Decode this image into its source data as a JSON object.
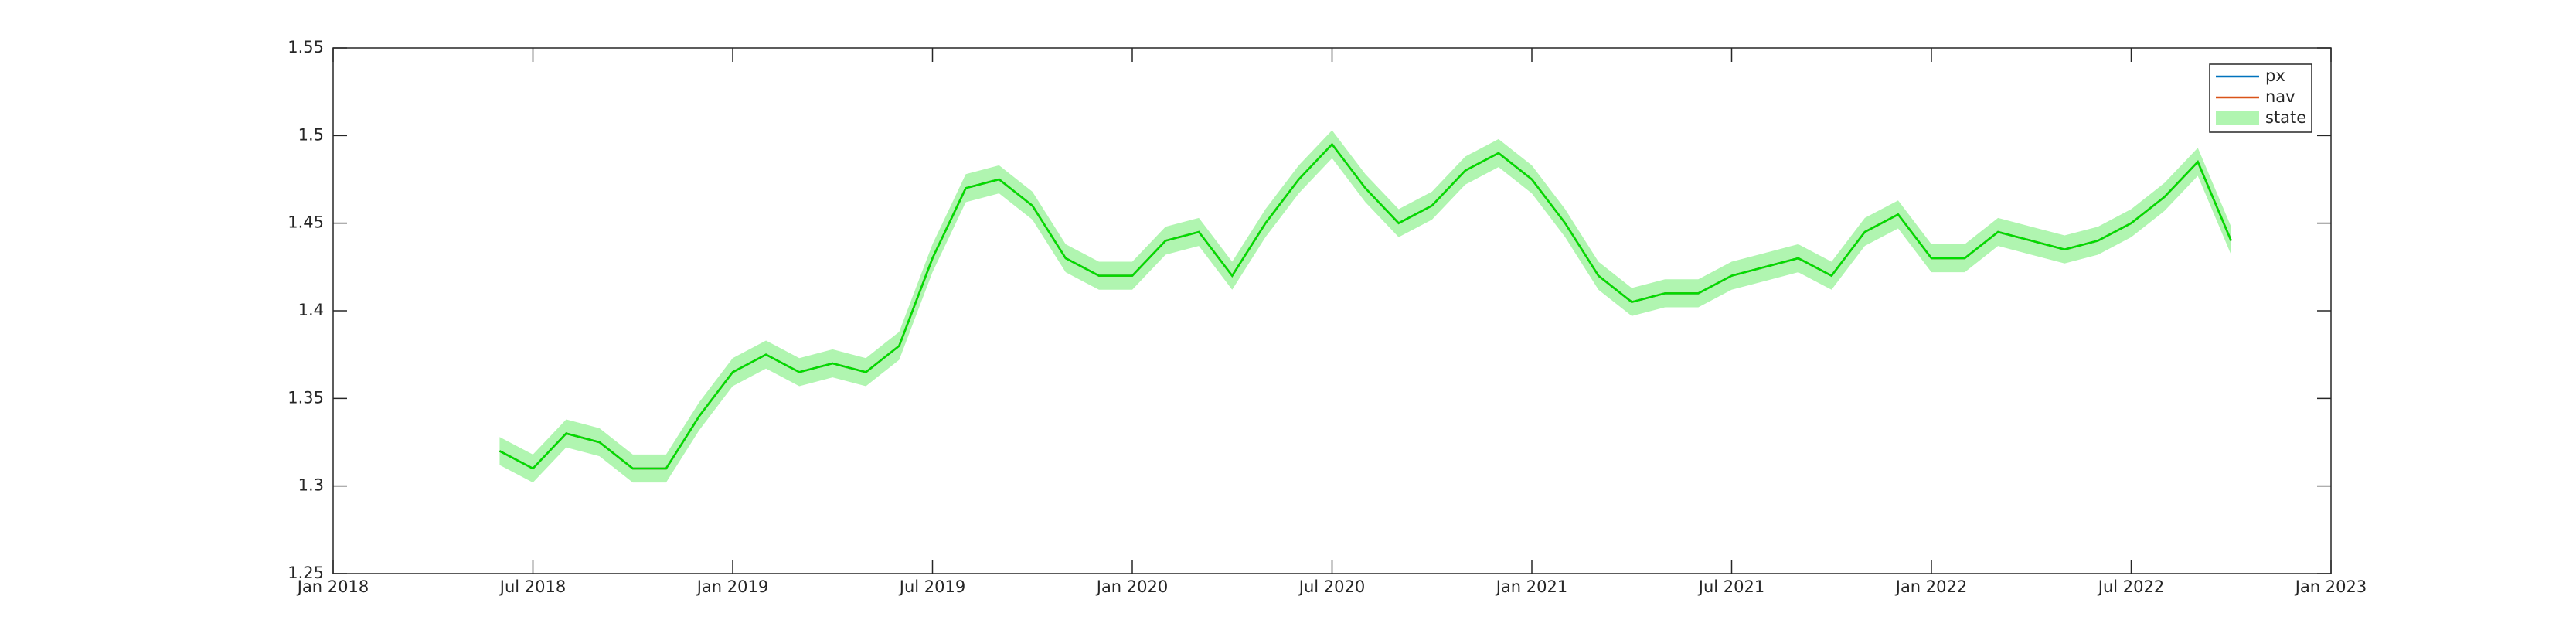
{
  "chart_data": {
    "type": "line",
    "x": [
      "2018-06",
      "2018-07",
      "2018-08",
      "2018-09",
      "2018-10",
      "2018-11",
      "2018-12",
      "2019-01",
      "2019-02",
      "2019-03",
      "2019-04",
      "2019-05",
      "2019-06",
      "2019-07",
      "2019-08",
      "2019-09",
      "2019-10",
      "2019-11",
      "2019-12",
      "2020-01",
      "2020-02",
      "2020-03",
      "2020-04",
      "2020-05",
      "2020-06",
      "2020-07",
      "2020-08",
      "2020-09",
      "2020-10",
      "2020-11",
      "2020-12",
      "2021-01",
      "2021-02",
      "2021-03",
      "2021-04",
      "2021-05",
      "2021-06",
      "2021-07",
      "2021-08",
      "2021-09",
      "2021-10",
      "2021-11",
      "2021-12",
      "2022-01",
      "2022-02",
      "2022-03",
      "2022-04",
      "2022-05",
      "2022-06",
      "2022-07",
      "2022-08",
      "2022-09",
      "2022-10"
    ],
    "series": [
      {
        "name": "px",
        "color": "#0072bd",
        "values": [
          1.32,
          1.31,
          1.33,
          1.325,
          1.31,
          1.31,
          1.34,
          1.365,
          1.375,
          1.365,
          1.37,
          1.365,
          1.38,
          1.43,
          1.47,
          1.475,
          1.46,
          1.43,
          1.42,
          1.42,
          1.44,
          1.445,
          1.42,
          1.45,
          1.475,
          1.495,
          1.47,
          1.45,
          1.46,
          1.48,
          1.49,
          1.475,
          1.45,
          1.42,
          1.405,
          1.41,
          1.41,
          1.42,
          1.425,
          1.43,
          1.42,
          1.445,
          1.455,
          1.43,
          1.43,
          1.445,
          1.44,
          1.435,
          1.44,
          1.45,
          1.465,
          1.485,
          1.44
        ]
      },
      {
        "name": "nav",
        "color": "#d95319",
        "values": [
          1.32,
          1.31,
          1.33,
          1.325,
          1.31,
          1.31,
          1.34,
          1.365,
          1.375,
          1.365,
          1.37,
          1.365,
          1.38,
          1.43,
          1.47,
          1.475,
          1.46,
          1.43,
          1.42,
          1.42,
          1.44,
          1.445,
          1.42,
          1.45,
          1.475,
          1.495,
          1.47,
          1.45,
          1.46,
          1.48,
          1.49,
          1.475,
          1.45,
          1.42,
          1.405,
          1.41,
          1.41,
          1.42,
          1.425,
          1.43,
          1.42,
          1.445,
          1.455,
          1.43,
          1.43,
          1.445,
          1.44,
          1.435,
          1.44,
          1.45,
          1.465,
          1.485,
          1.44
        ]
      },
      {
        "name": "state",
        "color": "#00dd00",
        "band_color": "#b0f5b0",
        "values": [
          1.32,
          1.31,
          1.33,
          1.325,
          1.31,
          1.31,
          1.34,
          1.365,
          1.375,
          1.365,
          1.37,
          1.365,
          1.38,
          1.43,
          1.47,
          1.475,
          1.46,
          1.43,
          1.42,
          1.42,
          1.44,
          1.445,
          1.42,
          1.45,
          1.475,
          1.495,
          1.47,
          1.45,
          1.46,
          1.48,
          1.49,
          1.475,
          1.45,
          1.42,
          1.405,
          1.41,
          1.41,
          1.42,
          1.425,
          1.43,
          1.42,
          1.445,
          1.455,
          1.43,
          1.43,
          1.445,
          1.44,
          1.435,
          1.44,
          1.45,
          1.465,
          1.485,
          1.44
        ],
        "lower": [
          1.312,
          1.302,
          1.322,
          1.317,
          1.302,
          1.302,
          1.332,
          1.357,
          1.367,
          1.357,
          1.362,
          1.357,
          1.372,
          1.422,
          1.462,
          1.467,
          1.452,
          1.422,
          1.412,
          1.412,
          1.432,
          1.437,
          1.412,
          1.442,
          1.467,
          1.487,
          1.462,
          1.442,
          1.452,
          1.472,
          1.482,
          1.467,
          1.442,
          1.412,
          1.397,
          1.402,
          1.402,
          1.412,
          1.417,
          1.422,
          1.412,
          1.437,
          1.447,
          1.422,
          1.422,
          1.437,
          1.432,
          1.427,
          1.432,
          1.442,
          1.457,
          1.477,
          1.432
        ],
        "upper": [
          1.328,
          1.318,
          1.338,
          1.333,
          1.318,
          1.318,
          1.348,
          1.373,
          1.383,
          1.373,
          1.378,
          1.373,
          1.388,
          1.438,
          1.478,
          1.483,
          1.468,
          1.438,
          1.428,
          1.428,
          1.448,
          1.453,
          1.428,
          1.458,
          1.483,
          1.503,
          1.478,
          1.458,
          1.468,
          1.488,
          1.498,
          1.483,
          1.458,
          1.428,
          1.413,
          1.418,
          1.418,
          1.428,
          1.433,
          1.438,
          1.428,
          1.453,
          1.463,
          1.438,
          1.438,
          1.453,
          1.448,
          1.443,
          1.448,
          1.458,
          1.473,
          1.493,
          1.448
        ]
      }
    ],
    "xlim": [
      "2018-01",
      "2023-01"
    ],
    "xticks": [
      {
        "value": "2018-01",
        "label": "Jan 2018"
      },
      {
        "value": "2018-07",
        "label": "Jul 2018"
      },
      {
        "value": "2019-01",
        "label": "Jan 2019"
      },
      {
        "value": "2019-07",
        "label": "Jul 2019"
      },
      {
        "value": "2020-01",
        "label": "Jan 2020"
      },
      {
        "value": "2020-07",
        "label": "Jul 2020"
      },
      {
        "value": "2021-01",
        "label": "Jan 2021"
      },
      {
        "value": "2021-07",
        "label": "Jul 2021"
      },
      {
        "value": "2022-01",
        "label": "Jan 2022"
      },
      {
        "value": "2022-07",
        "label": "Jul 2022"
      },
      {
        "value": "2023-01",
        "label": "Jan 2023"
      }
    ],
    "ylim": [
      1.25,
      1.55
    ],
    "yticks": [
      1.25,
      1.3,
      1.35,
      1.4,
      1.45,
      1.5,
      1.55
    ],
    "legend": "top-right"
  }
}
